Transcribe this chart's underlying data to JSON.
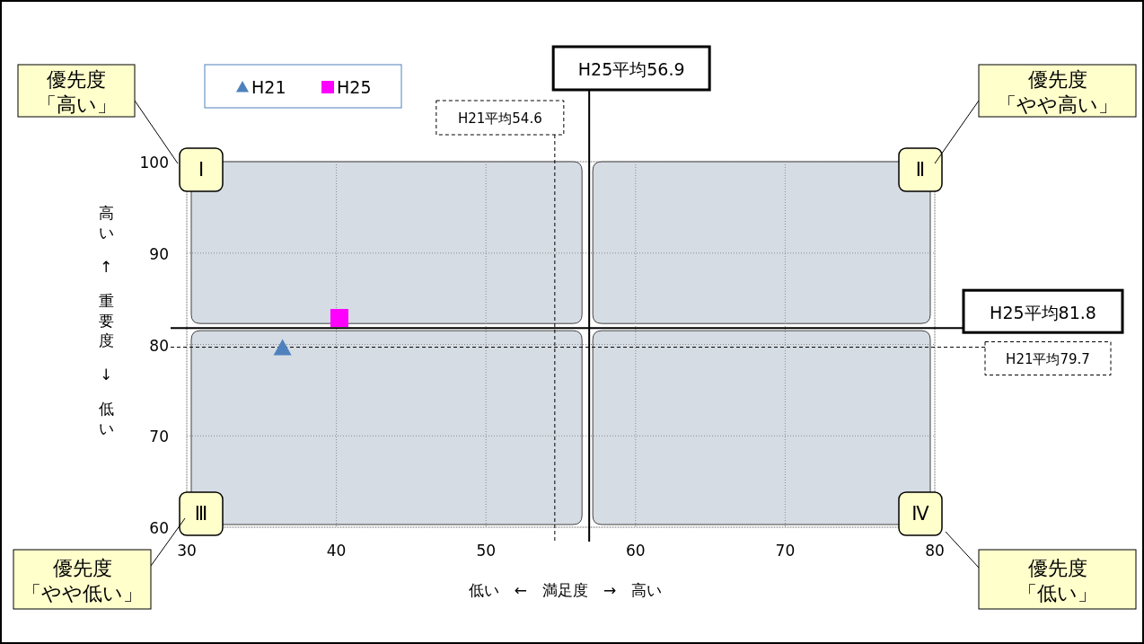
{
  "chart_data": {
    "type": "scatter",
    "xlabel": "低い　←　満足度　→　高い",
    "ylabel": "高い ↑ 重要度 ↓ 低い",
    "xlim": [
      30,
      80
    ],
    "ylim": [
      60,
      100
    ],
    "xticks": [
      30,
      40,
      50,
      60,
      70,
      80
    ],
    "yticks": [
      60,
      70,
      80,
      90,
      100
    ],
    "grid": true,
    "legend": "top left",
    "series": [
      {
        "name": "H21",
        "color": "#4f81bd",
        "marker": "triangle",
        "x": [
          36.4
        ],
        "values": [
          79.6
        ]
      },
      {
        "name": "H25",
        "color": "#ff00ff",
        "marker": "square",
        "x": [
          40.2
        ],
        "values": [
          82.9
        ]
      }
    ],
    "ref_lines": [
      {
        "axis": "x",
        "value": 56.9,
        "label": "H25平均56.9",
        "line_style": "solid"
      },
      {
        "axis": "x",
        "value": 54.6,
        "label": "H21平均54.6",
        "line_style": "dashed"
      },
      {
        "axis": "y",
        "value": 81.8,
        "label": "H25平均81.8",
        "line_style": "solid"
      },
      {
        "axis": "y",
        "value": 79.7,
        "label": "H21平均79.7",
        "line_style": "dashed"
      }
    ],
    "annotations": [
      "Ⅰ",
      "Ⅱ",
      "Ⅲ",
      "Ⅳ",
      "優先度",
      "「高い」",
      "優先度",
      "「やや高い」",
      "優先度",
      "「やや低い」",
      "優先度",
      "「低い」"
    ]
  }
}
